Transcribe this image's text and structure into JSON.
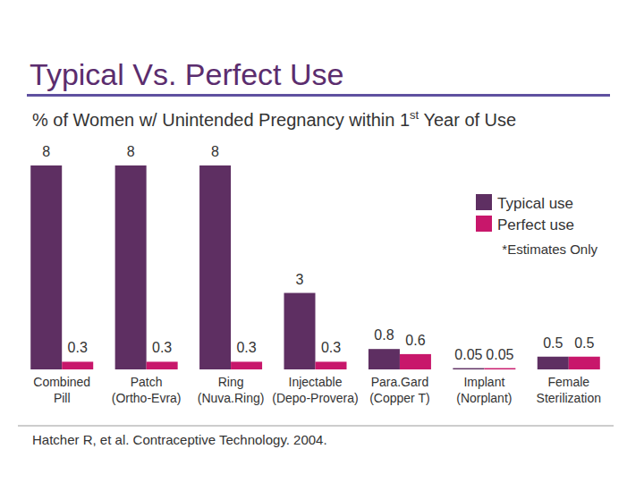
{
  "chart_data": {
    "type": "bar",
    "title": "Typical Vs. Perfect Use",
    "subtitle": "% of Women w/ Unintended Pregnancy within 1st Year of Use",
    "categories": [
      "Combined\nPill",
      "Patch\n(Ortho-Evra)",
      "Ring\n(Nuva.Ring)",
      "Injectable\n(Depo-Provera)",
      "Para.Gard\n(Copper T)",
      "Implant\n(Norplant)",
      "Female\nSterilization"
    ],
    "series": [
      {
        "name": "Typical use",
        "color": "#5e2f62",
        "values": [
          8,
          8,
          8,
          3,
          0.8,
          0.05,
          0.5
        ]
      },
      {
        "name": "Perfect use",
        "color": "#c8176b",
        "values": [
          0.3,
          0.3,
          0.3,
          0.3,
          0.6,
          0.05,
          0.5
        ]
      }
    ],
    "ylim": [
      0,
      8
    ],
    "tick_labels": "x",
    "data_labels": true,
    "legend": "right",
    "annotations": [
      "*Estimates Only"
    ],
    "source": "Hatcher R, et al. Contraceptive Technology. 2004."
  }
}
